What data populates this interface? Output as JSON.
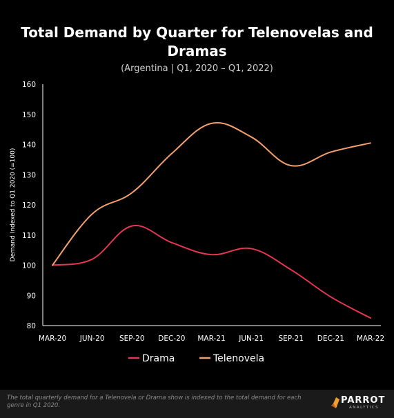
{
  "colors": {
    "background": "#000000",
    "drama": "#e8364f",
    "telenovela": "#f5a06c",
    "text": "#ffffff",
    "muted": "#8a8a8a"
  },
  "footer": {
    "note": "The total quarterly demand for a Telenovela or Drama show is indexed to the total demand for each genre in Q1 2020.",
    "logo_name": "PARROT",
    "logo_sub": "ANALYTICS"
  },
  "chart_data": {
    "type": "line",
    "title": "Total Demand by Quarter for Telenovelas and Dramas",
    "subtitle": "(Argentina  |  Q1, 2020 – Q1, 2022)",
    "xlabel": "",
    "ylabel": "Demand Indexed to Q1 2020 (=100)",
    "categories": [
      "MAR-20",
      "JUN-20",
      "SEP-20",
      "DEC-20",
      "MAR-21",
      "JUN-21",
      "SEP-21",
      "DEC-21",
      "MAR-22"
    ],
    "yticks": [
      80,
      90,
      100,
      110,
      120,
      130,
      140,
      150,
      160
    ],
    "ylim": [
      80,
      160
    ],
    "grid": false,
    "legend_position": "bottom",
    "series": [
      {
        "name": "Drama",
        "color": "#e8364f",
        "values": [
          100,
          102,
          113,
          107.5,
          103.5,
          105.5,
          98.5,
          89.5,
          82.5
        ]
      },
      {
        "name": "Telenovela",
        "color": "#f5a06c",
        "values": [
          100,
          117,
          124,
          137,
          147,
          142.5,
          133,
          137.5,
          140.5
        ]
      }
    ]
  }
}
